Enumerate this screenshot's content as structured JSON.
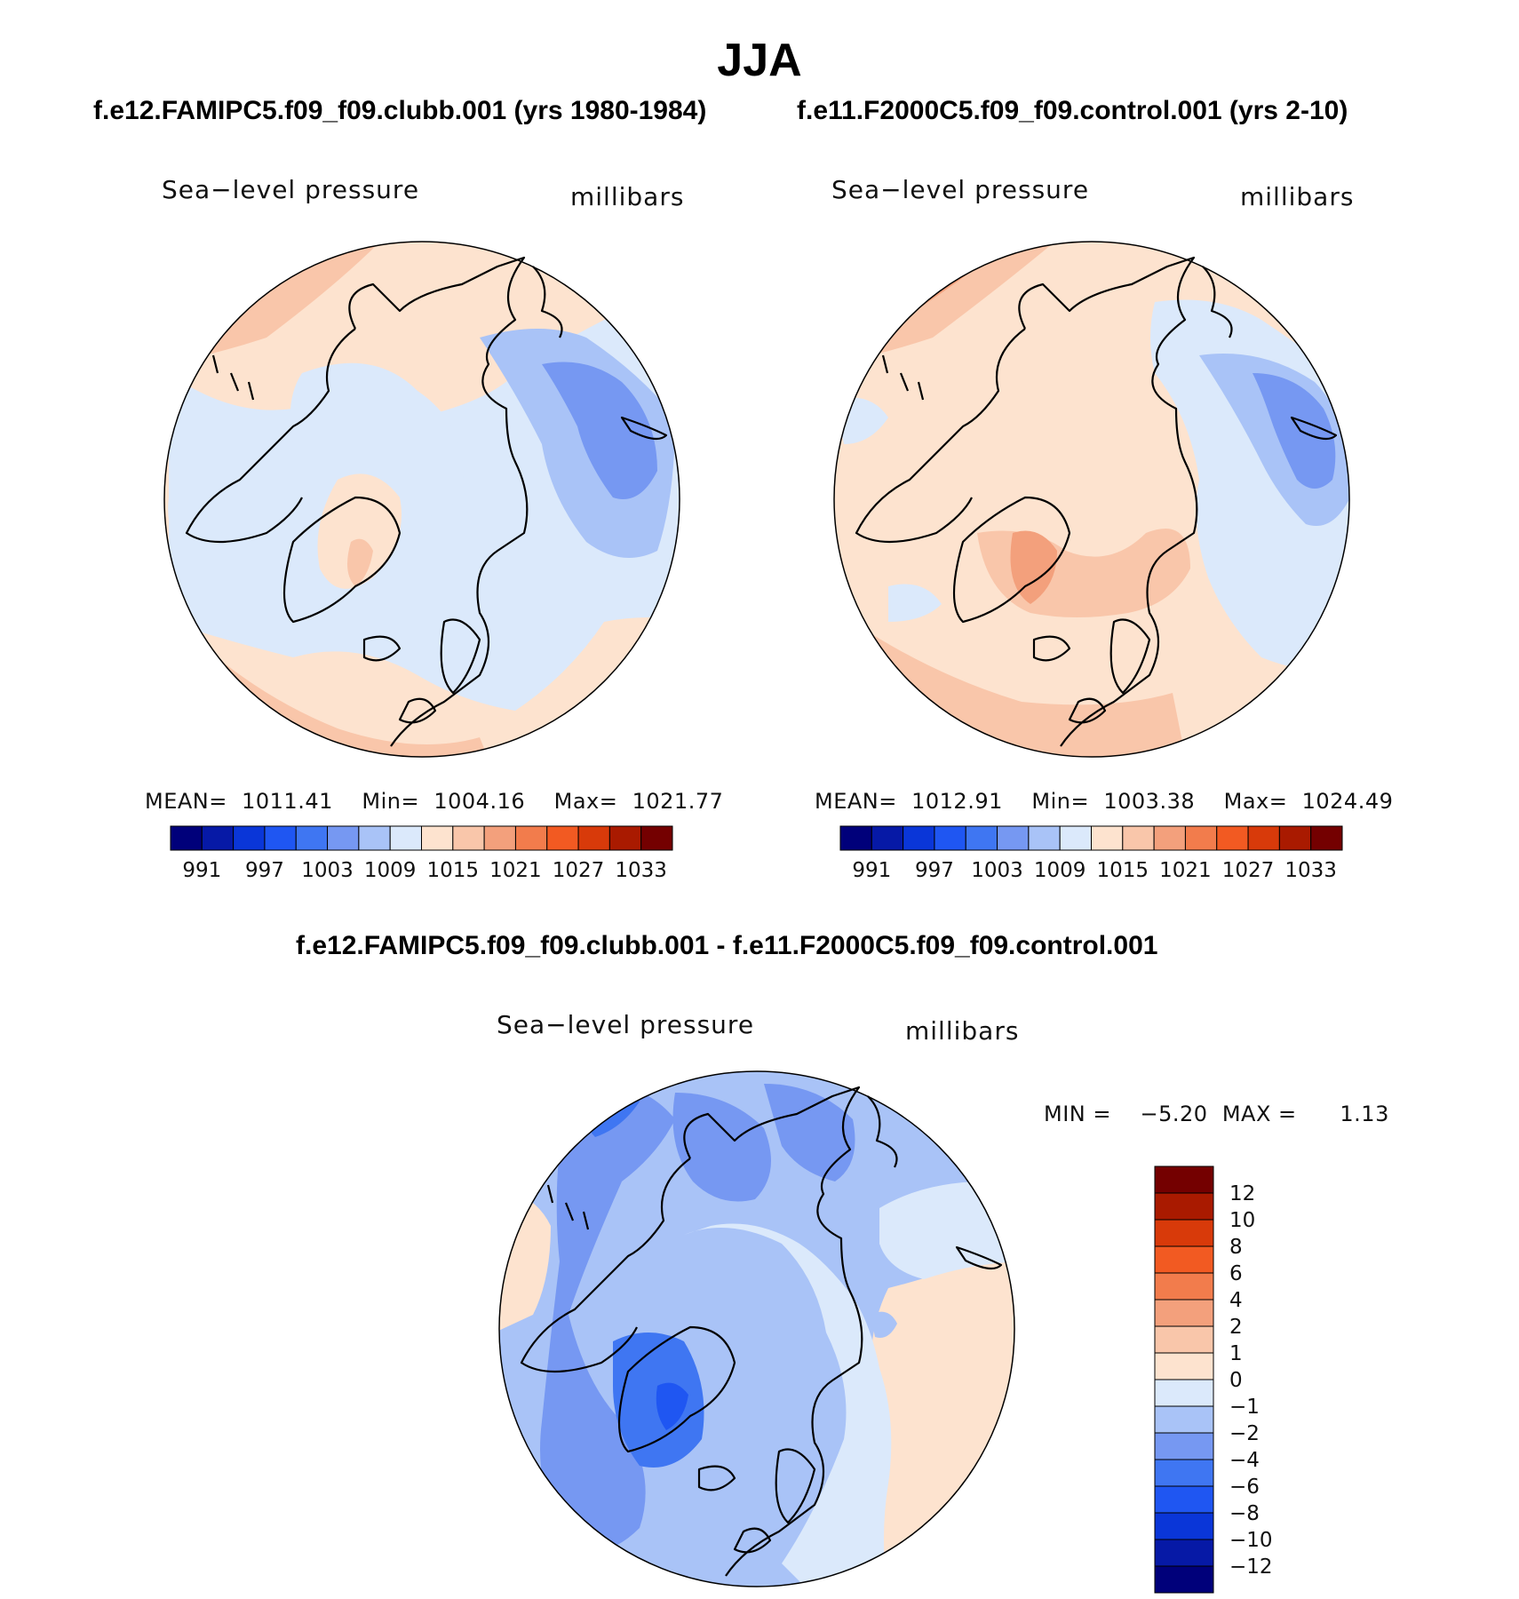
{
  "figure": {
    "title": "JJA",
    "panel1_title": "f.e12.FAMIPC5.f09_f09.clubb.001 (yrs 1980-1984)",
    "panel2_title": "f.e11.F2000C5.f09_f09.control.001 (yrs 2-10)",
    "panel3_title": "f.e12.FAMIPC5.f09_f09.clubb.001 - f.e11.F2000C5.f09_f09.control.001"
  },
  "panels": [
    {
      "variable": "Sea−level pressure",
      "units": "millibars",
      "stats": {
        "mean_label": "MEAN=",
        "mean": "1011.41",
        "min_label": "Min=",
        "min": "1004.16",
        "max_label": "Max=",
        "max": "1021.77"
      }
    },
    {
      "variable": "Sea−level pressure",
      "units": "millibars",
      "stats": {
        "mean_label": "MEAN=",
        "mean": "1012.91",
        "min_label": "Min=",
        "min": "1003.38",
        "max_label": "Max=",
        "max": "1024.49"
      }
    },
    {
      "variable": "Sea−level pressure",
      "units": "millibars",
      "stats": {
        "min_label": "MIN =",
        "min": "−5.20",
        "max_label": "MAX =",
        "max": "1.13"
      }
    }
  ],
  "chart_data": [
    {
      "type": "heatmap",
      "projection": "north polar stereographic",
      "title": "Sea−level pressure",
      "units": "millibars",
      "levels": [
        991,
        994,
        997,
        1000,
        1003,
        1006,
        1009,
        1012,
        1015,
        1018,
        1021,
        1024,
        1027,
        1030,
        1033
      ],
      "tick_labels": [
        "991",
        "997",
        "1003",
        "1009",
        "1015",
        "1021",
        "1027",
        "1033"
      ],
      "colors": [
        "#00007a",
        "#0619a6",
        "#0a36d8",
        "#1f56f2",
        "#3f76f2",
        "#7698f2",
        "#a9c3f7",
        "#dbe9fb",
        "#fde3cf",
        "#f9c6aa",
        "#f3a07c",
        "#f27c4c",
        "#f25a22",
        "#d83a0a",
        "#a91a00",
        "#740000"
      ],
      "stats": {
        "mean": 1011.41,
        "min": 1004.16,
        "max": 1021.77
      }
    },
    {
      "type": "heatmap",
      "projection": "north polar stereographic",
      "title": "Sea−level pressure",
      "units": "millibars",
      "levels": [
        991,
        994,
        997,
        1000,
        1003,
        1006,
        1009,
        1012,
        1015,
        1018,
        1021,
        1024,
        1027,
        1030,
        1033
      ],
      "tick_labels": [
        "991",
        "997",
        "1003",
        "1009",
        "1015",
        "1021",
        "1027",
        "1033"
      ],
      "colors": [
        "#00007a",
        "#0619a6",
        "#0a36d8",
        "#1f56f2",
        "#3f76f2",
        "#7698f2",
        "#a9c3f7",
        "#dbe9fb",
        "#fde3cf",
        "#f9c6aa",
        "#f3a07c",
        "#f27c4c",
        "#f25a22",
        "#d83a0a",
        "#a91a00",
        "#740000"
      ],
      "stats": {
        "mean": 1012.91,
        "min": 1003.38,
        "max": 1024.49
      }
    },
    {
      "type": "heatmap",
      "projection": "north polar stereographic",
      "title": "Sea−level pressure",
      "units": "millibars",
      "levels": [
        -12,
        -10,
        -8,
        -6,
        -4,
        -2,
        -1,
        0,
        1,
        2,
        4,
        6,
        8,
        10,
        12
      ],
      "tick_labels": [
        "12",
        "10",
        "8",
        "6",
        "4",
        "2",
        "1",
        "0",
        "−1",
        "−2",
        "−4",
        "−6",
        "−8",
        "−10",
        "−12"
      ],
      "colors_top_to_bottom": [
        "#740000",
        "#a91a00",
        "#d83a0a",
        "#f25a22",
        "#f27c4c",
        "#f3a07c",
        "#f9c6aa",
        "#fde3cf",
        "#dbe9fb",
        "#a9c3f7",
        "#7698f2",
        "#3f76f2",
        "#1f56f2",
        "#0a36d8",
        "#0619a6",
        "#00007a"
      ],
      "stats": {
        "min": -5.2,
        "max": 1.13
      }
    }
  ]
}
